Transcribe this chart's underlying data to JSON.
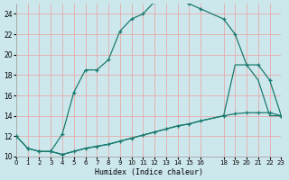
{
  "xlabel": "Humidex (Indice chaleur)",
  "bg_color": "#cde8ed",
  "grid_color": "#e8aaaa",
  "line_color": "#1a7a6e",
  "xlim": [
    0,
    23
  ],
  "ylim": [
    10,
    25
  ],
  "yticks": [
    10,
    12,
    14,
    16,
    18,
    20,
    22,
    24
  ],
  "xticks": [
    0,
    1,
    2,
    3,
    4,
    5,
    6,
    7,
    8,
    9,
    10,
    11,
    12,
    13,
    14,
    15,
    16,
    18,
    19,
    20,
    21,
    22,
    23
  ],
  "curve_upper_x": [
    0,
    1,
    2,
    3,
    4,
    5,
    6,
    7,
    8,
    9,
    10,
    11,
    12,
    13,
    14,
    15,
    16,
    18,
    19,
    20,
    21,
    22,
    23
  ],
  "curve_upper_y": [
    12,
    10.8,
    10.5,
    10.5,
    12.2,
    16.3,
    18.5,
    18.5,
    19.5,
    22.3,
    23.5,
    24.0,
    25.2,
    25.3,
    25.3,
    25.0,
    24.5,
    23.5,
    22.0,
    19.0,
    19.0,
    17.5,
    14.0
  ],
  "curve_lower_x": [
    0,
    1,
    2,
    3,
    4,
    5,
    6,
    7,
    8,
    9,
    10,
    11,
    12,
    13,
    14,
    15,
    16,
    18,
    19,
    20,
    21,
    22,
    23
  ],
  "curve_lower_y": [
    12,
    10.8,
    10.5,
    10.5,
    10.2,
    10.5,
    10.8,
    11.0,
    11.2,
    11.5,
    11.8,
    12.1,
    12.4,
    12.7,
    13.0,
    13.2,
    13.5,
    14.0,
    14.2,
    14.3,
    14.3,
    14.3,
    14.0
  ],
  "curve_mid_x": [
    3,
    4,
    5,
    6,
    7,
    8,
    9,
    10,
    11,
    12,
    13,
    14,
    15,
    16,
    18,
    19,
    20,
    21,
    22,
    23
  ],
  "curve_mid_y": [
    10.5,
    10.2,
    10.5,
    10.8,
    11.0,
    11.2,
    11.5,
    11.8,
    12.1,
    12.4,
    12.7,
    13.0,
    13.2,
    13.5,
    14.0,
    19.0,
    19.0,
    17.5,
    14.0,
    14.0
  ]
}
